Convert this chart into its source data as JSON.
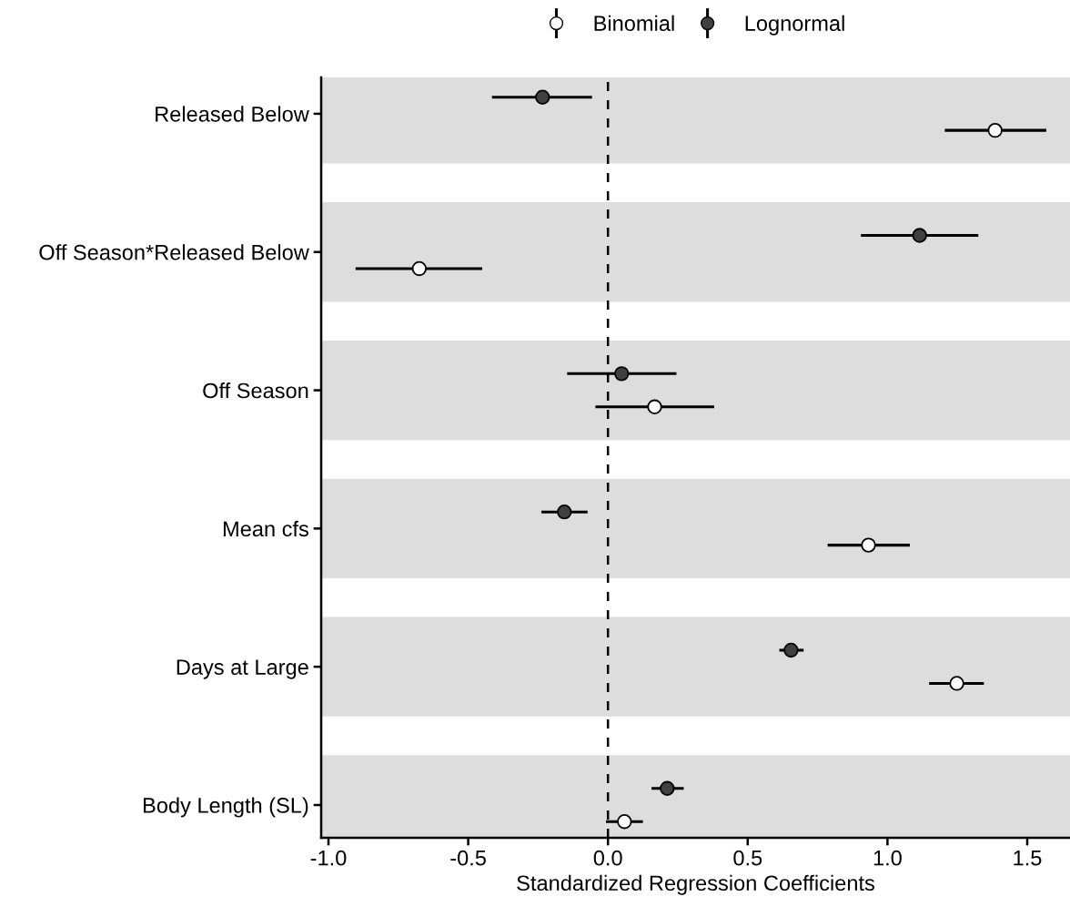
{
  "chart_data": {
    "type": "scatter",
    "orientation": "horizontal",
    "xlabel": "Standardized Regression Coefficients",
    "categories": [
      "Released Below",
      "Off Season*Released Below",
      "Off Season",
      "Mean cfs",
      "Days at Large",
      "Body Length (SL)"
    ],
    "series": [
      {
        "name": "Binomial",
        "color": "#ffffff",
        "values": [
          1.385,
          -0.675,
          0.167,
          0.932,
          1.248,
          0.059
        ],
        "errors": [
          [
            1.205,
            1.568
          ],
          [
            -0.903,
            -0.45
          ],
          [
            -0.045,
            0.38
          ],
          [
            0.786,
            1.08
          ],
          [
            1.149,
            1.345
          ],
          [
            -0.007,
            0.125
          ]
        ]
      },
      {
        "name": "Lognormal",
        "color": "#404040",
        "values": [
          -0.234,
          1.115,
          0.049,
          -0.156,
          0.655,
          0.212
        ],
        "errors": [
          [
            -0.415,
            -0.057
          ],
          [
            0.905,
            1.325
          ],
          [
            -0.146,
            0.245
          ],
          [
            -0.238,
            -0.073
          ],
          [
            0.613,
            0.7
          ],
          [
            0.156,
            0.271
          ]
        ]
      }
    ],
    "xlim": [
      -1.026,
      1.653
    ],
    "xticks": [
      {
        "value": -1.0,
        "label": "-1.0"
      },
      {
        "value": -0.5,
        "label": "-0.5"
      },
      {
        "value": 0.0,
        "label": "0.0"
      },
      {
        "value": 0.5,
        "label": "0.5"
      },
      {
        "value": 1.0,
        "label": "1.0"
      },
      {
        "value": 1.5,
        "label": "1.5"
      }
    ],
    "ref_lines": [
      {
        "axis": "x",
        "value": 0,
        "line_style": "dashed",
        "color": "#000000"
      }
    ],
    "bands": [
      {
        "axis": "y",
        "from": "Released Below",
        "to": "Released Below",
        "color": "#dddddd"
      },
      {
        "axis": "y",
        "from": "Off Season*Released Below",
        "to": "Off Season*Released Below",
        "color": "#dddddd"
      },
      {
        "axis": "y",
        "from": "Off Season",
        "to": "Off Season",
        "color": "#dddddd"
      },
      {
        "axis": "y",
        "from": "Mean cfs",
        "to": "Mean cfs",
        "color": "#dddddd"
      },
      {
        "axis": "y",
        "from": "Days at Large",
        "to": "Days at Large",
        "color": "#dddddd"
      },
      {
        "axis": "y",
        "from": "Body Length (SL)",
        "to": "Body Length (SL)",
        "color": "#dddddd"
      }
    ],
    "grid": false,
    "legend": "top",
    "marker": "circle"
  }
}
